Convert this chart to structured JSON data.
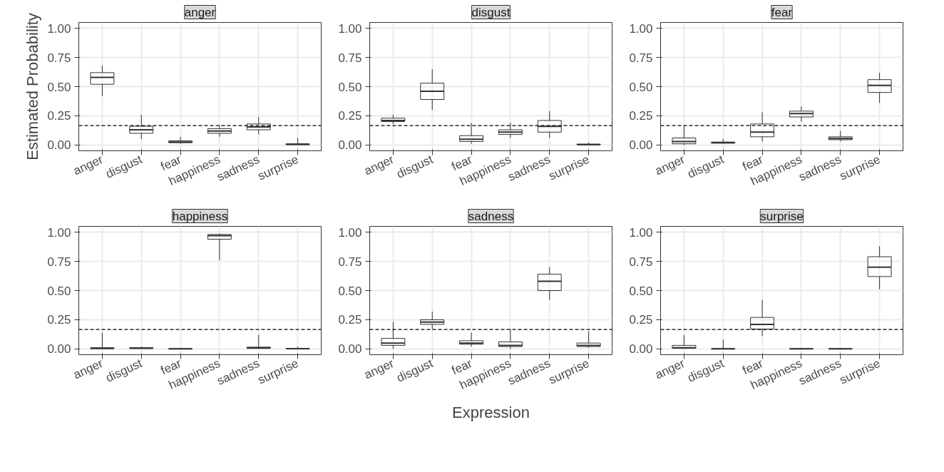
{
  "chart_data": [
    {
      "type": "box",
      "title": "anger",
      "ylabel": "Estimated Probability",
      "categories": [
        "anger",
        "disgust",
        "fear",
        "happiness",
        "sadness",
        "surprise"
      ],
      "ylim": [
        -0.05,
        1.05
      ],
      "yticks": [
        {
          "value": 0,
          "label": "0.00"
        },
        {
          "value": 0.25,
          "label": "0.25"
        },
        {
          "value": 0.5,
          "label": "0.50"
        },
        {
          "value": 0.75,
          "label": "0.75"
        },
        {
          "value": 1,
          "label": "1.00"
        }
      ],
      "grid": true,
      "ref_lines": [
        {
          "axis": "y",
          "value": 0.1667,
          "label": null,
          "line_style": "dashed",
          "color": "#000000"
        }
      ],
      "boxes": [
        {
          "low": 0.42,
          "q1": 0.52,
          "median": 0.58,
          "q3": 0.62,
          "high": 0.68
        },
        {
          "low": 0.05,
          "q1": 0.1,
          "median": 0.13,
          "q3": 0.16,
          "high": 0.26
        },
        {
          "low": 0.01,
          "q1": 0.02,
          "median": 0.025,
          "q3": 0.035,
          "high": 0.07
        },
        {
          "low": 0.07,
          "q1": 0.1,
          "median": 0.12,
          "q3": 0.14,
          "high": 0.17
        },
        {
          "low": 0.09,
          "q1": 0.13,
          "median": 0.155,
          "q3": 0.18,
          "high": 0.24
        },
        {
          "low": 0,
          "q1": 0.003,
          "median": 0.005,
          "q3": 0.01,
          "high": 0.06
        }
      ]
    },
    {
      "type": "box",
      "title": "disgust",
      "categories": [
        "anger",
        "disgust",
        "fear",
        "happiness",
        "sadness",
        "surprise"
      ],
      "ylim": [
        -0.05,
        1.05
      ],
      "yticks": [
        {
          "value": 0,
          "label": "0.00"
        },
        {
          "value": 0.25,
          "label": "0.25"
        },
        {
          "value": 0.5,
          "label": "0.50"
        },
        {
          "value": 0.75,
          "label": "0.75"
        },
        {
          "value": 1,
          "label": "1.00"
        }
      ],
      "grid": true,
      "ref_lines": [
        {
          "axis": "y",
          "value": 0.1667,
          "label": null,
          "line_style": "dashed",
          "color": "#000000"
        }
      ],
      "boxes": [
        {
          "low": 0.18,
          "q1": 0.2,
          "median": 0.21,
          "q3": 0.23,
          "high": 0.26
        },
        {
          "low": 0.3,
          "q1": 0.39,
          "median": 0.46,
          "q3": 0.53,
          "high": 0.65
        },
        {
          "low": 0.01,
          "q1": 0.03,
          "median": 0.05,
          "q3": 0.08,
          "high": 0.19
        },
        {
          "low": 0.06,
          "q1": 0.09,
          "median": 0.11,
          "q3": 0.13,
          "high": 0.19
        },
        {
          "low": 0.06,
          "q1": 0.11,
          "median": 0.16,
          "q3": 0.21,
          "high": 0.29
        },
        {
          "low": 0,
          "q1": 0.002,
          "median": 0.004,
          "q3": 0.007,
          "high": 0.02
        }
      ]
    },
    {
      "type": "box",
      "title": "fear",
      "categories": [
        "anger",
        "disgust",
        "fear",
        "happiness",
        "sadness",
        "surprise"
      ],
      "ylim": [
        -0.05,
        1.05
      ],
      "yticks": [
        {
          "value": 0,
          "label": "0.00"
        },
        {
          "value": 0.25,
          "label": "0.25"
        },
        {
          "value": 0.5,
          "label": "0.50"
        },
        {
          "value": 0.75,
          "label": "0.75"
        },
        {
          "value": 1,
          "label": "1.00"
        }
      ],
      "grid": true,
      "ref_lines": [
        {
          "axis": "y",
          "value": 0.1667,
          "label": null,
          "line_style": "dashed",
          "color": "#000000"
        }
      ],
      "boxes": [
        {
          "low": 0,
          "q1": 0.01,
          "median": 0.03,
          "q3": 0.06,
          "high": 0.16
        },
        {
          "low": 0.01,
          "q1": 0.015,
          "median": 0.02,
          "q3": 0.025,
          "high": 0.05
        },
        {
          "low": 0.03,
          "q1": 0.07,
          "median": 0.11,
          "q3": 0.18,
          "high": 0.28
        },
        {
          "low": 0.2,
          "q1": 0.24,
          "median": 0.27,
          "q3": 0.29,
          "high": 0.33
        },
        {
          "low": 0.03,
          "q1": 0.045,
          "median": 0.055,
          "q3": 0.07,
          "high": 0.12
        },
        {
          "low": 0.36,
          "q1": 0.45,
          "median": 0.51,
          "q3": 0.56,
          "high": 0.62
        }
      ]
    },
    {
      "type": "box",
      "title": "happiness",
      "categories": [
        "anger",
        "disgust",
        "fear",
        "happiness",
        "sadness",
        "surprise"
      ],
      "ylim": [
        -0.05,
        1.05
      ],
      "yticks": [
        {
          "value": 0,
          "label": "0.00"
        },
        {
          "value": 0.25,
          "label": "0.25"
        },
        {
          "value": 0.5,
          "label": "0.50"
        },
        {
          "value": 0.75,
          "label": "0.75"
        },
        {
          "value": 1,
          "label": "1.00"
        }
      ],
      "grid": true,
      "ref_lines": [
        {
          "axis": "y",
          "value": 0.1667,
          "label": null,
          "line_style": "dashed",
          "color": "#000000"
        }
      ],
      "boxes": [
        {
          "low": 0,
          "q1": 0.002,
          "median": 0.005,
          "q3": 0.01,
          "high": 0.14
        },
        {
          "low": 0,
          "q1": 0.003,
          "median": 0.006,
          "q3": 0.01,
          "high": 0.02
        },
        {
          "low": 0,
          "q1": 0,
          "median": 0.001,
          "q3": 0.002,
          "high": 0.005
        },
        {
          "low": 0.76,
          "q1": 0.94,
          "median": 0.97,
          "q3": 0.98,
          "high": 0.99
        },
        {
          "low": 0,
          "q1": 0.004,
          "median": 0.008,
          "q3": 0.015,
          "high": 0.12
        },
        {
          "low": 0,
          "q1": 0.001,
          "median": 0.002,
          "q3": 0.004,
          "high": 0.02
        }
      ]
    },
    {
      "type": "box",
      "title": "sadness",
      "xlabel": "Expression",
      "categories": [
        "anger",
        "disgust",
        "fear",
        "happiness",
        "sadness",
        "surprise"
      ],
      "ylim": [
        -0.05,
        1.05
      ],
      "yticks": [
        {
          "value": 0,
          "label": "0.00"
        },
        {
          "value": 0.25,
          "label": "0.25"
        },
        {
          "value": 0.5,
          "label": "0.50"
        },
        {
          "value": 0.75,
          "label": "0.75"
        },
        {
          "value": 1,
          "label": "1.00"
        }
      ],
      "grid": true,
      "ref_lines": [
        {
          "axis": "y",
          "value": 0.1667,
          "label": null,
          "line_style": "dashed",
          "color": "#000000"
        }
      ],
      "boxes": [
        {
          "low": 0,
          "q1": 0.03,
          "median": 0.05,
          "q3": 0.09,
          "high": 0.23
        },
        {
          "low": 0.17,
          "q1": 0.21,
          "median": 0.23,
          "q3": 0.25,
          "high": 0.32
        },
        {
          "low": 0.02,
          "q1": 0.04,
          "median": 0.05,
          "q3": 0.07,
          "high": 0.14
        },
        {
          "low": 0,
          "q1": 0.02,
          "median": 0.03,
          "q3": 0.06,
          "high": 0.17
        },
        {
          "low": 0.42,
          "q1": 0.5,
          "median": 0.58,
          "q3": 0.64,
          "high": 0.7
        },
        {
          "low": 0.01,
          "q1": 0.02,
          "median": 0.03,
          "q3": 0.05,
          "high": 0.15
        }
      ]
    },
    {
      "type": "box",
      "title": "surprise",
      "categories": [
        "anger",
        "disgust",
        "fear",
        "happiness",
        "sadness",
        "surprise"
      ],
      "ylim": [
        -0.05,
        1.05
      ],
      "yticks": [
        {
          "value": 0,
          "label": "0.00"
        },
        {
          "value": 0.25,
          "label": "0.25"
        },
        {
          "value": 0.5,
          "label": "0.50"
        },
        {
          "value": 0.75,
          "label": "0.75"
        },
        {
          "value": 1,
          "label": "1.00"
        }
      ],
      "grid": true,
      "ref_lines": [
        {
          "axis": "y",
          "value": 0.1667,
          "label": null,
          "line_style": "dashed",
          "color": "#000000"
        }
      ],
      "boxes": [
        {
          "low": 0,
          "q1": 0.005,
          "median": 0.01,
          "q3": 0.03,
          "high": 0.12
        },
        {
          "low": 0,
          "q1": 0,
          "median": 0.001,
          "q3": 0.002,
          "high": 0.08
        },
        {
          "low": 0.11,
          "q1": 0.17,
          "median": 0.21,
          "q3": 0.27,
          "high": 0.42
        },
        {
          "low": 0,
          "q1": 0,
          "median": 0.001,
          "q3": 0.002,
          "high": 0.005
        },
        {
          "low": 0,
          "q1": 0,
          "median": 0.001,
          "q3": 0.002,
          "high": 0.005
        },
        {
          "low": 0.51,
          "q1": 0.62,
          "median": 0.7,
          "q3": 0.79,
          "high": 0.88
        }
      ]
    }
  ]
}
